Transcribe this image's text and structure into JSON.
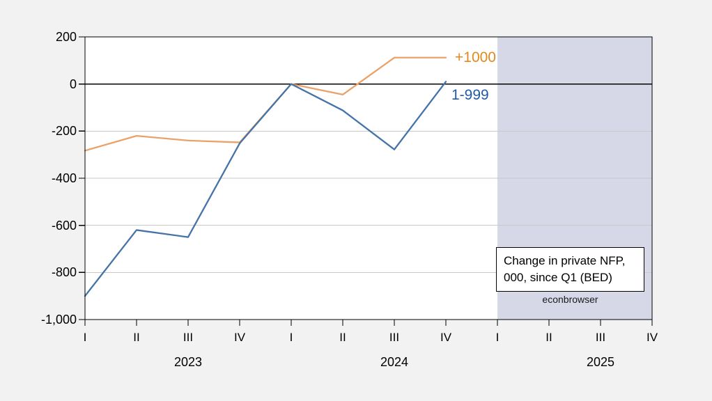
{
  "chart_data": {
    "type": "line",
    "categories": [
      "2023Q1",
      "2023Q2",
      "2023Q3",
      "2023Q4",
      "2024Q1",
      "2024Q2",
      "2024Q3",
      "2024Q4"
    ],
    "x_tick_labels": [
      "I",
      "II",
      "III",
      "IV",
      "I",
      "II",
      "III",
      "IV",
      "I",
      "II",
      "III",
      "IV"
    ],
    "year_labels": [
      {
        "label": "2023",
        "tick_index": 2
      },
      {
        "label": "2024",
        "tick_index": 6
      },
      {
        "label": "2025",
        "tick_index": 10
      }
    ],
    "y_tick_values": [
      200,
      0,
      -200,
      -400,
      -600,
      -800,
      -1000
    ],
    "y_tick_labels": [
      "200",
      "0",
      "-200",
      "-400",
      "-600",
      "-800",
      "-1,000"
    ],
    "ylim": [
      -1000,
      200
    ],
    "grid": "horizontal-only",
    "zero_line_value": 0,
    "series": [
      {
        "name": "+1000",
        "line_color": "#e9a26a",
        "label_color": "#e1881e",
        "values": [
          -283,
          -220,
          -240,
          -248,
          0,
          -45,
          112,
          112
        ]
      },
      {
        "name": "1-999",
        "line_color": "#4573a7",
        "label_color": "#1f5ba9",
        "values": [
          -900,
          -620,
          -650,
          -252,
          0,
          -112,
          -278,
          10
        ]
      }
    ],
    "shaded_region": {
      "from_tick_index": 8,
      "to_tick_index": 11,
      "color": "#d6d8e7"
    },
    "note_lines": [
      "Change in private NFP,",
      "000, since Q1 (BED)"
    ],
    "watermark": "econbrowser",
    "colors": {
      "outer_background": "#f2f2f2",
      "plot_background": "#ffffff",
      "gridline": "#c9c9c9",
      "axis": "#000000"
    }
  }
}
